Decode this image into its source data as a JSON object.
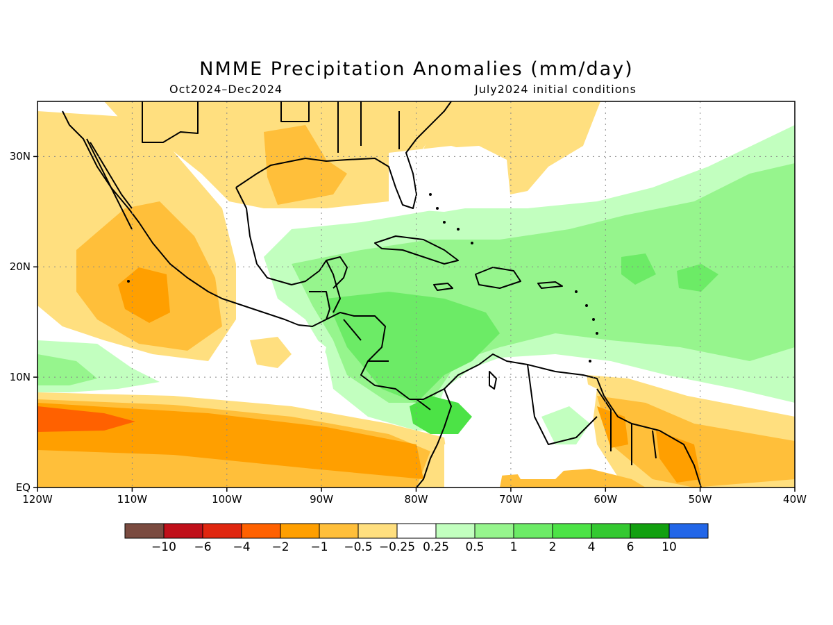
{
  "title": "NMME Precipitation Anomalies (mm/day)",
  "subtitle_left": "Oct2024–Dec2024",
  "subtitle_right": "July2024 initial conditions",
  "map": {
    "lon_range": [
      -120,
      -40
    ],
    "lat_range": [
      0,
      35
    ],
    "x_ticks": [
      "120W",
      "110W",
      "100W",
      "90W",
      "80W",
      "70W",
      "60W",
      "50W",
      "40W"
    ],
    "y_ticks": [
      "EQ",
      "10N",
      "20N",
      "30N"
    ],
    "grid": "dotted",
    "projection": "lat-lon"
  },
  "colorbar": {
    "colors": [
      "#7a4b40",
      "#c0101a",
      "#e0260f",
      "#ff6100",
      "#ff9f00",
      "#ffbf3a",
      "#ffdf7f",
      "#ffffff",
      "#c2ffbf",
      "#96f58d",
      "#6ceb66",
      "#4ce346",
      "#34c931",
      "#12a010",
      "#2266e8"
    ],
    "labels": [
      "−10",
      "−6",
      "−4",
      "−2",
      "−1",
      "−0.5",
      "−0.25",
      "0.25",
      "0.5",
      "1",
      "2",
      "4",
      "6",
      "10"
    ]
  }
}
